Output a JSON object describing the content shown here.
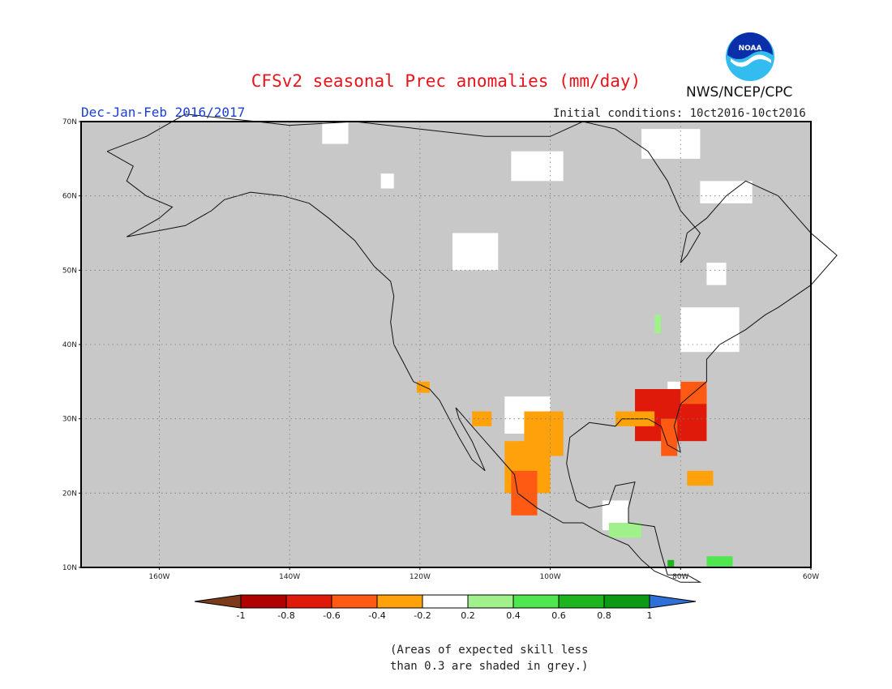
{
  "title": "CFSv2 seasonal Prec anomalies (mm/day)",
  "season": "Dec-Jan-Feb 2016/2017",
  "initial_conditions": "Initial conditions: 10ct2016-10ct2016",
  "org": "NWS/NCEP/CPC",
  "logo_text": "NOAA",
  "note_lines": [
    "(Areas of expected skill less",
    "than 0.3 are shaded in grey.)"
  ],
  "map": {
    "lon_range": [
      -172,
      -60
    ],
    "lat_range": [
      10,
      70
    ],
    "lat_ticks": [
      {
        "value": 70,
        "label": "70N"
      },
      {
        "value": 60,
        "label": "60N"
      },
      {
        "value": 50,
        "label": "50N"
      },
      {
        "value": 40,
        "label": "40N"
      },
      {
        "value": 30,
        "label": "30N"
      },
      {
        "value": 20,
        "label": "20N"
      },
      {
        "value": 10,
        "label": "10N"
      }
    ],
    "lon_ticks": [
      {
        "value": -160,
        "label": "160W"
      },
      {
        "value": -140,
        "label": "140W"
      },
      {
        "value": -120,
        "label": "120W"
      },
      {
        "value": -100,
        "label": "100W"
      },
      {
        "value": -80,
        "label": "80W"
      },
      {
        "value": -60,
        "label": "60W"
      }
    ],
    "skill_mask_color": "#c8c8c8",
    "anomaly_regions": [
      {
        "name": "southeast-us",
        "lon": [
          -87,
          -76
        ],
        "lat": [
          27,
          34
        ],
        "value": -0.8
      },
      {
        "name": "florida",
        "lon": [
          -83,
          -80.5
        ],
        "lat": [
          25,
          30
        ],
        "value": -0.6
      },
      {
        "name": "carolinas-coast",
        "lon": [
          -80,
          -76
        ],
        "lat": [
          32,
          35
        ],
        "value": -0.5
      },
      {
        "name": "gulf-coast",
        "lon": [
          -90,
          -84
        ],
        "lat": [
          29,
          31
        ],
        "value": -0.3
      },
      {
        "name": "southern-texas",
        "lon": [
          -104,
          -98
        ],
        "lat": [
          25,
          31
        ],
        "value": -0.4
      },
      {
        "name": "northern-mexico",
        "lon": [
          -107,
          -100
        ],
        "lat": [
          20,
          27
        ],
        "value": -0.4
      },
      {
        "name": "mexico-pacific-coast",
        "lon": [
          -106,
          -102
        ],
        "lat": [
          17,
          23
        ],
        "value": -0.6
      },
      {
        "name": "baja-north",
        "lon": [
          -120.5,
          -118.5
        ],
        "lat": [
          33.5,
          35
        ],
        "value": -0.4
      },
      {
        "name": "sonora",
        "lon": [
          -112,
          -109
        ],
        "lat": [
          29,
          31
        ],
        "value": -0.4
      },
      {
        "name": "cuba",
        "lon": [
          -79,
          -75
        ],
        "lat": [
          21,
          23
        ],
        "value": -0.4
      },
      {
        "name": "central-america",
        "lon": [
          -91,
          -86
        ],
        "lat": [
          14,
          16
        ],
        "value": 0.3
      },
      {
        "name": "great-lakes",
        "lon": [
          -84,
          -83
        ],
        "lat": [
          41.5,
          44
        ],
        "value": 0.3
      },
      {
        "name": "colombia-coast",
        "lon": [
          -76,
          -72
        ],
        "lat": [
          10,
          11.5
        ],
        "value": 0.5
      },
      {
        "name": "panama",
        "lon": [
          -82,
          -81
        ],
        "lat": [
          10,
          11
        ],
        "value": 0.7
      }
    ],
    "near_zero_regions": [
      {
        "lon": [
          -135,
          -131
        ],
        "lat": [
          67,
          70
        ]
      },
      {
        "lon": [
          -126,
          -124
        ],
        "lat": [
          61,
          63
        ]
      },
      {
        "lon": [
          -106,
          -98
        ],
        "lat": [
          62,
          66
        ]
      },
      {
        "lon": [
          -115,
          -108
        ],
        "lat": [
          50,
          55
        ]
      },
      {
        "lon": [
          -77,
          -69
        ],
        "lat": [
          59,
          62
        ]
      },
      {
        "lon": [
          -76,
          -73
        ],
        "lat": [
          48,
          51
        ]
      },
      {
        "lon": [
          -86,
          -77
        ],
        "lat": [
          65,
          69
        ]
      },
      {
        "lon": [
          -80,
          -71
        ],
        "lat": [
          39,
          45
        ]
      },
      {
        "lon": [
          -107,
          -100
        ],
        "lat": [
          28,
          33
        ]
      },
      {
        "lon": [
          -92,
          -88
        ],
        "lat": [
          15,
          19
        ]
      },
      {
        "lon": [
          -82,
          -76
        ],
        "lat": [
          33,
          35
        ]
      }
    ]
  },
  "colorbar": {
    "labels": [
      "-1",
      "-0.8",
      "-0.6",
      "-0.4",
      "-0.2",
      "0.2",
      "0.4",
      "0.6",
      "0.8",
      "1"
    ],
    "under_color": "#7b3a1a",
    "over_color": "#2f6fd8",
    "colors": [
      "#b00000",
      "#e01a0a",
      "#ff5a14",
      "#ffa10a",
      "#ffffff",
      "#a0f08c",
      "#50e650",
      "#1eb41e",
      "#0a9a14"
    ]
  }
}
